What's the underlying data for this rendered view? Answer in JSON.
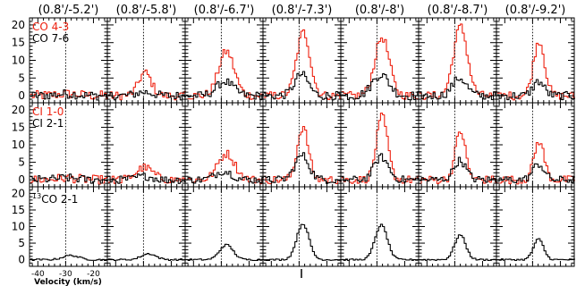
{
  "chart_data": {
    "type": "line",
    "xlabel": "Velocity (km/s)",
    "xlim": [
      -43,
      -15
    ],
    "ylim": [
      -2,
      22
    ],
    "yticks": [
      0,
      5,
      10,
      15,
      20
    ],
    "xticks": [
      -40,
      -30,
      -20
    ],
    "columns": [
      {
        "title": "(0.8'/-5.2')",
        "vline": -30.0
      },
      {
        "title": "(0.8'/-5.8')",
        "vline": -30.0
      },
      {
        "title": "(0.8'/-6.7')",
        "vline": -30.0
      },
      {
        "title": "(0.8'/-7.3')",
        "vline": -30.0
      },
      {
        "title": "(0.8'/-8')",
        "vline": -30.0
      },
      {
        "title": "(0.8'/-8.7')",
        "vline": -30.0
      },
      {
        "title": "(0.8'/-9.2')",
        "vline": -30.0
      }
    ],
    "rows": [
      {
        "series": [
          {
            "name": "CO 4-3",
            "color": "#ee2211",
            "peaks": [
              [
                0.5,
                -30,
                4
              ],
              [
                6.5,
                -29.8,
                2.3
              ],
              [
                12.5,
                -28.5,
                2.8
              ],
              [
                18,
                -28.8,
                2.4
              ],
              [
                16.5,
                -28.5,
                2.6
              ],
              [
                19.5,
                -28.3,
                2.5
              ],
              [
                15.5,
                -28,
                2
              ]
            ],
            "noise": [
              1.4,
              1.2,
              1.2,
              1.2,
              1.2,
              1.2,
              1.2
            ]
          },
          {
            "name": "CO 7-6",
            "color": "#000000",
            "peaks": [
              [
                0.5,
                -30,
                4
              ],
              [
                1,
                -30,
                3
              ],
              [
                4,
                -29,
                3
              ],
              [
                6,
                -29.5,
                2.5
              ],
              [
                6,
                -29,
                3
              ],
              [
                5,
                -28.6,
                2.5
              ],
              [
                4,
                -28.2,
                2
              ]
            ],
            "noise": [
              1.3,
              1.2,
              1.2,
              1.2,
              1.3,
              1.2,
              1.2
            ]
          }
        ]
      },
      {
        "series": [
          {
            "name": "CI 1-0",
            "color": "#ee2211",
            "peaks": [
              [
                0.5,
                -30,
                4
              ],
              [
                3.5,
                -30,
                3
              ],
              [
                7.5,
                -28.5,
                3
              ],
              [
                15,
                -29,
                2
              ],
              [
                18,
                -28.5,
                2
              ],
              [
                14,
                -28.3,
                1.8
              ],
              [
                11,
                -28,
                1.8
              ]
            ],
            "noise": [
              1.3,
              1.2,
              1.2,
              1.2,
              1.2,
              1.2,
              1.2
            ]
          },
          {
            "name": "CI 2-1",
            "color": "#000000",
            "peaks": [
              [
                0.5,
                -30,
                4
              ],
              [
                1,
                -30,
                3
              ],
              [
                2.5,
                -29.5,
                3
              ],
              [
                7,
                -29.3,
                2.5
              ],
              [
                6.5,
                -28.8,
                2.5
              ],
              [
                5.5,
                -28.5,
                2.2
              ],
              [
                4.5,
                -28.2,
                2
              ]
            ],
            "noise": [
              1.2,
              1.1,
              1.1,
              1.1,
              1.1,
              1.1,
              1.1
            ]
          }
        ]
      },
      {
        "legend_text": "CO 2-1",
        "legend_sup": "13",
        "series": [
          {
            "name": "13CO 2-1",
            "color": "#000000",
            "peaks": [
              [
                1.3,
                -28.5,
                2.8
              ],
              [
                1.8,
                -28.5,
                2.6
              ],
              [
                4.5,
                -28.5,
                2.4
              ],
              [
                10.8,
                -29,
                2.2
              ],
              [
                10.5,
                -28.8,
                2.2
              ],
              [
                7.5,
                -28.4,
                2
              ],
              [
                6.2,
                -28.2,
                1.8
              ]
            ],
            "noise": [
              0.25,
              0.25,
              0.25,
              0.25,
              0.25,
              0.25,
              0.25
            ]
          }
        ]
      }
    ]
  }
}
